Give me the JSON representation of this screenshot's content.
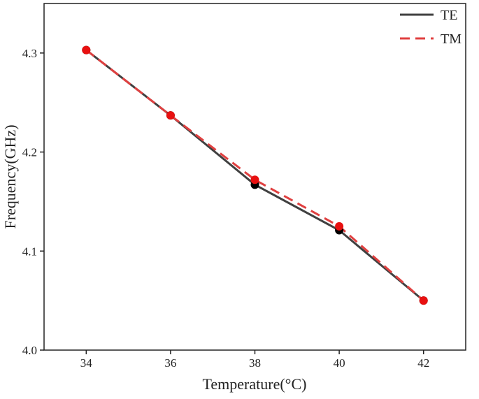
{
  "chart_data": {
    "type": "line",
    "xlabel": "Temperature(°C)",
    "ylabel": "Frequency(GHz)",
    "xlim": [
      33.0,
      43.0
    ],
    "ylim": [
      4.0,
      4.35
    ],
    "xticks": [
      34,
      36,
      38,
      40,
      42
    ],
    "xtick_labels": [
      "34",
      "36",
      "38",
      "40",
      "42"
    ],
    "yticks": [
      4.0,
      4.1,
      4.2,
      4.3
    ],
    "ytick_labels": [
      "4.0",
      "4.1",
      "4.2",
      "4.3"
    ],
    "grid": false,
    "legend_position": "top-right",
    "series": [
      {
        "name": "TE",
        "color": "#404040",
        "marker_color": "#000000",
        "line_style": "solid",
        "x": [
          34,
          36,
          38,
          40,
          42
        ],
        "y": [
          4.303,
          4.237,
          4.167,
          4.121,
          4.05
        ]
      },
      {
        "name": "TM",
        "color": "#e04040",
        "marker_color": "#e81010",
        "line_style": "dashed",
        "x": [
          34,
          36,
          38,
          40,
          42
        ],
        "y": [
          4.303,
          4.237,
          4.172,
          4.125,
          4.05
        ]
      }
    ]
  }
}
